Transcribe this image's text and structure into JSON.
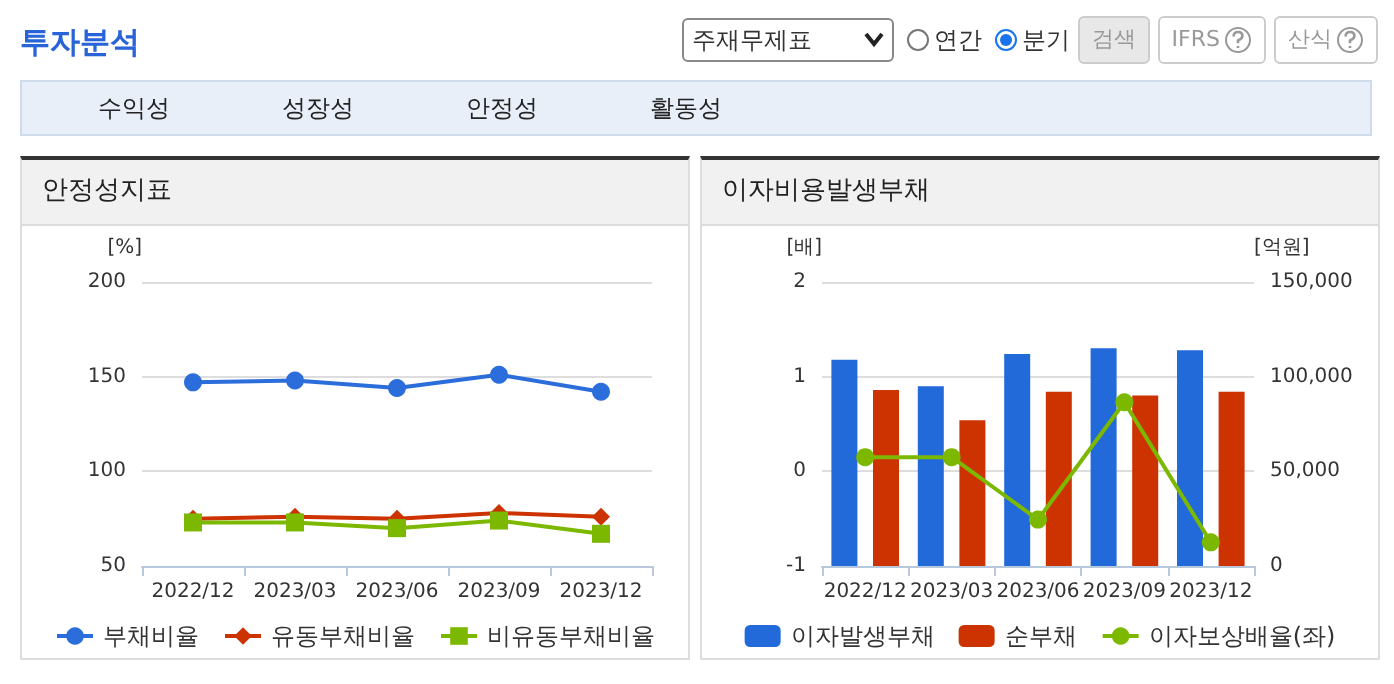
{
  "chart_data": [
    {
      "type": "other",
      "title": "투자분석",
      "annotations": [
        "주재무제표",
        "연간",
        "분기",
        "검색",
        "IFRS",
        "산식",
        "수익성",
        "성장성",
        "안정성",
        "활동성"
      ]
    },
    {
      "type": "line",
      "title": "안정성지표",
      "ylabel": "[%]",
      "categories": [
        "2022/12",
        "2023/03",
        "2023/06",
        "2023/09",
        "2023/12"
      ],
      "ylim": [
        50,
        200
      ],
      "yticks": [
        50,
        100,
        150,
        200
      ],
      "grid": "y",
      "legend": "bottom",
      "line_style": "solid",
      "series": [
        {
          "name": "부채비율",
          "color": "#2a6ddb",
          "marker": "circle",
          "values": [
            147,
            148,
            144,
            151,
            142
          ]
        },
        {
          "name": "유동부채비율",
          "color": "#cc3300",
          "marker": "diamond",
          "values": [
            75,
            76,
            75,
            78,
            76
          ]
        },
        {
          "name": "비유동부채비율",
          "color": "#7cb800",
          "marker": "square",
          "values": [
            73,
            73,
            70,
            74,
            67
          ]
        }
      ]
    },
    {
      "type": "bar",
      "title": "이자비용발생부채",
      "ylabel": "[배]",
      "y2label": "[억원]",
      "categories": [
        "2022/12",
        "2023/03",
        "2023/06",
        "2023/09",
        "2023/12"
      ],
      "ylim": [
        -1,
        2
      ],
      "yticks": [
        -1,
        0,
        1,
        2
      ],
      "y2lim": [
        0,
        150000
      ],
      "y2ticks": [
        0,
        {
          "value": 50000,
          "label": "50,000"
        },
        {
          "value": 100000,
          "label": "100,000"
        },
        {
          "value": 150000,
          "label": "150,000"
        }
      ],
      "grid": "y",
      "legend": "bottom",
      "series": [
        {
          "name": "이자발생부채",
          "color": "#226ad9",
          "axis": "y2",
          "values": [
            109000,
            95000,
            112000,
            115000,
            114000
          ]
        },
        {
          "name": "순부채",
          "color": "#cc3300",
          "axis": "y2",
          "values": [
            93000,
            77000,
            92000,
            90000,
            92000
          ]
        },
        {
          "name": "이자보상배율(좌)",
          "type": "line",
          "color": "#7cb800",
          "marker": "circle",
          "axis": "y",
          "values": [
            0.15,
            0.15,
            -0.51,
            0.73,
            -0.75
          ]
        }
      ]
    }
  ]
}
